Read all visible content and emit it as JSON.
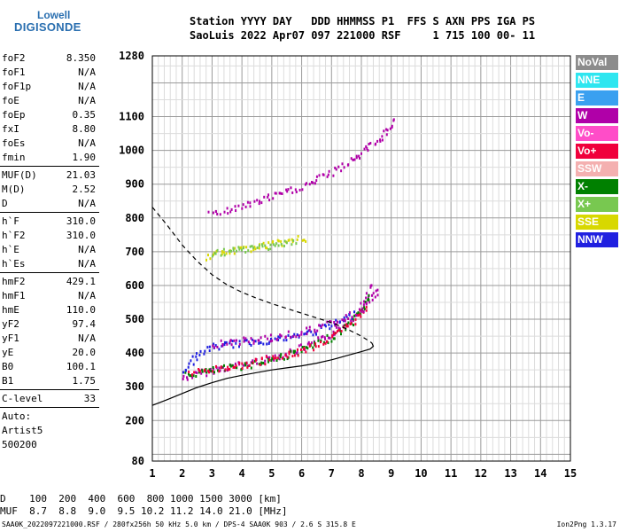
{
  "logo": {
    "line1": "Lowell",
    "line2": "DIGISONDE"
  },
  "header": {
    "line1": "Station YYYY DAY   DDD HHMMSS P1  FFS S AXN PPS IGA PS",
    "line2": "SaoLuis 2022 Apr07 097 221000 RSF     1 715 100 00- 11"
  },
  "params": {
    "group1": [
      {
        "label": "foF2",
        "value": "8.350"
      },
      {
        "label": "foF1",
        "value": "N/A"
      },
      {
        "label": "foF1p",
        "value": "N/A"
      },
      {
        "label": "foE",
        "value": "N/A"
      },
      {
        "label": "foEp",
        "value": "0.35"
      },
      {
        "label": "fxI",
        "value": "8.80"
      },
      {
        "label": "foEs",
        "value": "N/A"
      },
      {
        "label": "fmin",
        "value": "1.90"
      }
    ],
    "group2": [
      {
        "label": "MUF(D)",
        "value": "21.03"
      },
      {
        "label": "M(D)",
        "value": "2.52"
      },
      {
        "label": "D",
        "value": "N/A"
      }
    ],
    "group3": [
      {
        "label": "h`F",
        "value": "310.0"
      },
      {
        "label": "h`F2",
        "value": "310.0"
      },
      {
        "label": "h`E",
        "value": "N/A"
      },
      {
        "label": "h`Es",
        "value": "N/A"
      }
    ],
    "group4": [
      {
        "label": "hmF2",
        "value": "429.1"
      },
      {
        "label": "hmF1",
        "value": "N/A"
      },
      {
        "label": "hmE",
        "value": "110.0"
      },
      {
        "label": "yF2",
        "value": "97.4"
      },
      {
        "label": "yF1",
        "value": "N/A"
      },
      {
        "label": "yE",
        "value": "20.0"
      },
      {
        "label": "B0",
        "value": "100.1"
      },
      {
        "label": "B1",
        "value": "1.75"
      }
    ],
    "clevel": {
      "label": "C-level",
      "value": "33"
    },
    "notes": [
      "Auto:",
      "Artist5",
      "500200"
    ]
  },
  "legend": [
    {
      "label": "NoVal",
      "color": "#8c8c8c"
    },
    {
      "label": "NNE",
      "color": "#2ee6f0"
    },
    {
      "label": "E",
      "color": "#3aa0f0"
    },
    {
      "label": "W",
      "color": "#b000a8"
    },
    {
      "label": "Vo-",
      "color": "#ff4dc8"
    },
    {
      "label": "Vo+",
      "color": "#f0003c"
    },
    {
      "label": "SSW",
      "color": "#f4b0b0"
    },
    {
      "label": "X-",
      "color": "#008000"
    },
    {
      "label": "X+",
      "color": "#78c850"
    },
    {
      "label": "SSE",
      "color": "#d8d800"
    },
    {
      "label": "NNW",
      "color": "#2020e0"
    }
  ],
  "footer": {
    "d_line": "D    100  200  400  600  800 1000 1500 3000 [km]",
    "muf_line": "MUF  8.7  8.8  9.0  9.5 10.2 11.2 14.0 21.0 [MHz]",
    "bottom": "SAA0K_2022097221000.RSF / 280fx256h 50 kHz 5.0 km / DPS-4 SAA0K 903 / 2.6 S 315.8 E",
    "version": "Ion2Png 1.3.17"
  },
  "chart_data": {
    "type": "scatter",
    "xlim": [
      1,
      15
    ],
    "ylim": [
      80,
      1280
    ],
    "xticks": [
      "1",
      "2",
      "3",
      "4",
      "5",
      "6",
      "7",
      "8",
      "9",
      "10",
      "11",
      "12",
      "13",
      "14",
      "15"
    ],
    "yticks": [
      "80",
      "200",
      "300",
      "400",
      "500",
      "600",
      "700",
      "800",
      "900",
      "1000",
      "1100",
      "1280"
    ],
    "grid": true,
    "traces": [
      {
        "color": "#b000a8",
        "points": [
          [
            2.0,
            328
          ],
          [
            2.4,
            338
          ],
          [
            2.8,
            348
          ],
          [
            3.2,
            356
          ],
          [
            3.6,
            362
          ],
          [
            4.0,
            370
          ],
          [
            4.5,
            378
          ],
          [
            5.0,
            390
          ],
          [
            5.5,
            402
          ],
          [
            6.0,
            418
          ],
          [
            6.5,
            436
          ],
          [
            7.0,
            460
          ],
          [
            7.5,
            488
          ],
          [
            7.8,
            520
          ],
          [
            8.0,
            548
          ],
          [
            8.2,
            578
          ],
          [
            8.35,
            610
          ]
        ]
      },
      {
        "color": "#008000",
        "points": [
          [
            2.1,
            336
          ],
          [
            2.6,
            346
          ],
          [
            3.1,
            352
          ],
          [
            3.6,
            360
          ],
          [
            4.2,
            368
          ],
          [
            4.8,
            380
          ],
          [
            5.4,
            394
          ],
          [
            6.0,
            412
          ],
          [
            6.6,
            432
          ],
          [
            7.2,
            462
          ],
          [
            7.7,
            496
          ],
          [
            8.0,
            532
          ],
          [
            8.3,
            580
          ]
        ]
      },
      {
        "color": "#f0003c",
        "points": [
          [
            2.2,
            342
          ],
          [
            2.7,
            350
          ],
          [
            3.3,
            358
          ],
          [
            3.9,
            366
          ],
          [
            4.4,
            374
          ],
          [
            5.0,
            386
          ],
          [
            5.6,
            398
          ],
          [
            6.2,
            418
          ],
          [
            6.8,
            440
          ],
          [
            7.4,
            472
          ],
          [
            7.9,
            512
          ],
          [
            8.2,
            548
          ]
        ]
      },
      {
        "color": "#2020e0",
        "points": [
          [
            2.0,
            352
          ],
          [
            2.3,
            380
          ],
          [
            2.6,
            405
          ],
          [
            3.0,
            420
          ],
          [
            3.5,
            428
          ],
          [
            4.0,
            432
          ],
          [
            4.5,
            438
          ],
          [
            5.0,
            442
          ],
          [
            5.5,
            448
          ],
          [
            6.0,
            458
          ],
          [
            6.5,
            470
          ],
          [
            7.0,
            486
          ],
          [
            7.5,
            506
          ],
          [
            7.8,
            522
          ]
        ]
      },
      {
        "color": "#b000a8",
        "points": [
          [
            3.0,
            430
          ],
          [
            3.6,
            436
          ],
          [
            4.2,
            440
          ],
          [
            4.8,
            446
          ],
          [
            5.4,
            454
          ],
          [
            6.0,
            466
          ],
          [
            6.6,
            480
          ],
          [
            7.2,
            498
          ],
          [
            7.7,
            516
          ],
          [
            8.0,
            536
          ],
          [
            8.3,
            560
          ],
          [
            8.6,
            598
          ]
        ]
      },
      {
        "color": "#b000a8",
        "points": [
          [
            2.9,
            812
          ],
          [
            3.5,
            826
          ],
          [
            4.0,
            838
          ],
          [
            4.5,
            852
          ],
          [
            5.0,
            866
          ],
          [
            5.5,
            880
          ],
          [
            5.9,
            892
          ],
          [
            6.4,
            912
          ],
          [
            7.0,
            938
          ],
          [
            7.6,
            970
          ],
          [
            8.1,
            1005
          ],
          [
            8.6,
            1040
          ],
          [
            9.0,
            1075
          ],
          [
            9.1,
            1100
          ]
        ]
      },
      {
        "color": "#d8d800",
        "points": [
          [
            2.8,
            688
          ],
          [
            3.4,
            700
          ],
          [
            4.0,
            710
          ],
          [
            4.6,
            720
          ],
          [
            5.2,
            728
          ],
          [
            5.8,
            738
          ],
          [
            6.2,
            745
          ]
        ]
      },
      {
        "color": "#78c850",
        "points": [
          [
            3.0,
            695
          ],
          [
            3.7,
            705
          ],
          [
            4.4,
            715
          ],
          [
            5.1,
            724
          ],
          [
            5.8,
            732
          ]
        ]
      }
    ],
    "curves": [
      {
        "style": "solid",
        "points": [
          [
            1.0,
            245
          ],
          [
            1.5,
            262
          ],
          [
            2.0,
            280
          ],
          [
            2.5,
            298
          ],
          [
            3.0,
            312
          ],
          [
            3.5,
            325
          ],
          [
            4.0,
            334
          ],
          [
            4.5,
            342
          ],
          [
            5.0,
            350
          ],
          [
            5.5,
            356
          ],
          [
            6.0,
            362
          ],
          [
            6.5,
            370
          ],
          [
            7.0,
            380
          ],
          [
            7.5,
            392
          ],
          [
            8.0,
            404
          ],
          [
            8.3,
            412
          ],
          [
            8.4,
            420
          ],
          [
            8.35,
            430
          ]
        ]
      },
      {
        "style": "dashed",
        "points": [
          [
            1.0,
            832
          ],
          [
            1.5,
            778
          ],
          [
            2.0,
            720
          ],
          [
            2.5,
            672
          ],
          [
            3.0,
            632
          ],
          [
            3.5,
            602
          ],
          [
            4.0,
            580
          ],
          [
            4.5,
            562
          ],
          [
            5.0,
            546
          ],
          [
            5.5,
            532
          ],
          [
            6.0,
            518
          ],
          [
            6.5,
            504
          ],
          [
            7.0,
            490
          ],
          [
            7.5,
            472
          ],
          [
            8.0,
            450
          ],
          [
            8.35,
            430
          ]
        ]
      }
    ]
  }
}
